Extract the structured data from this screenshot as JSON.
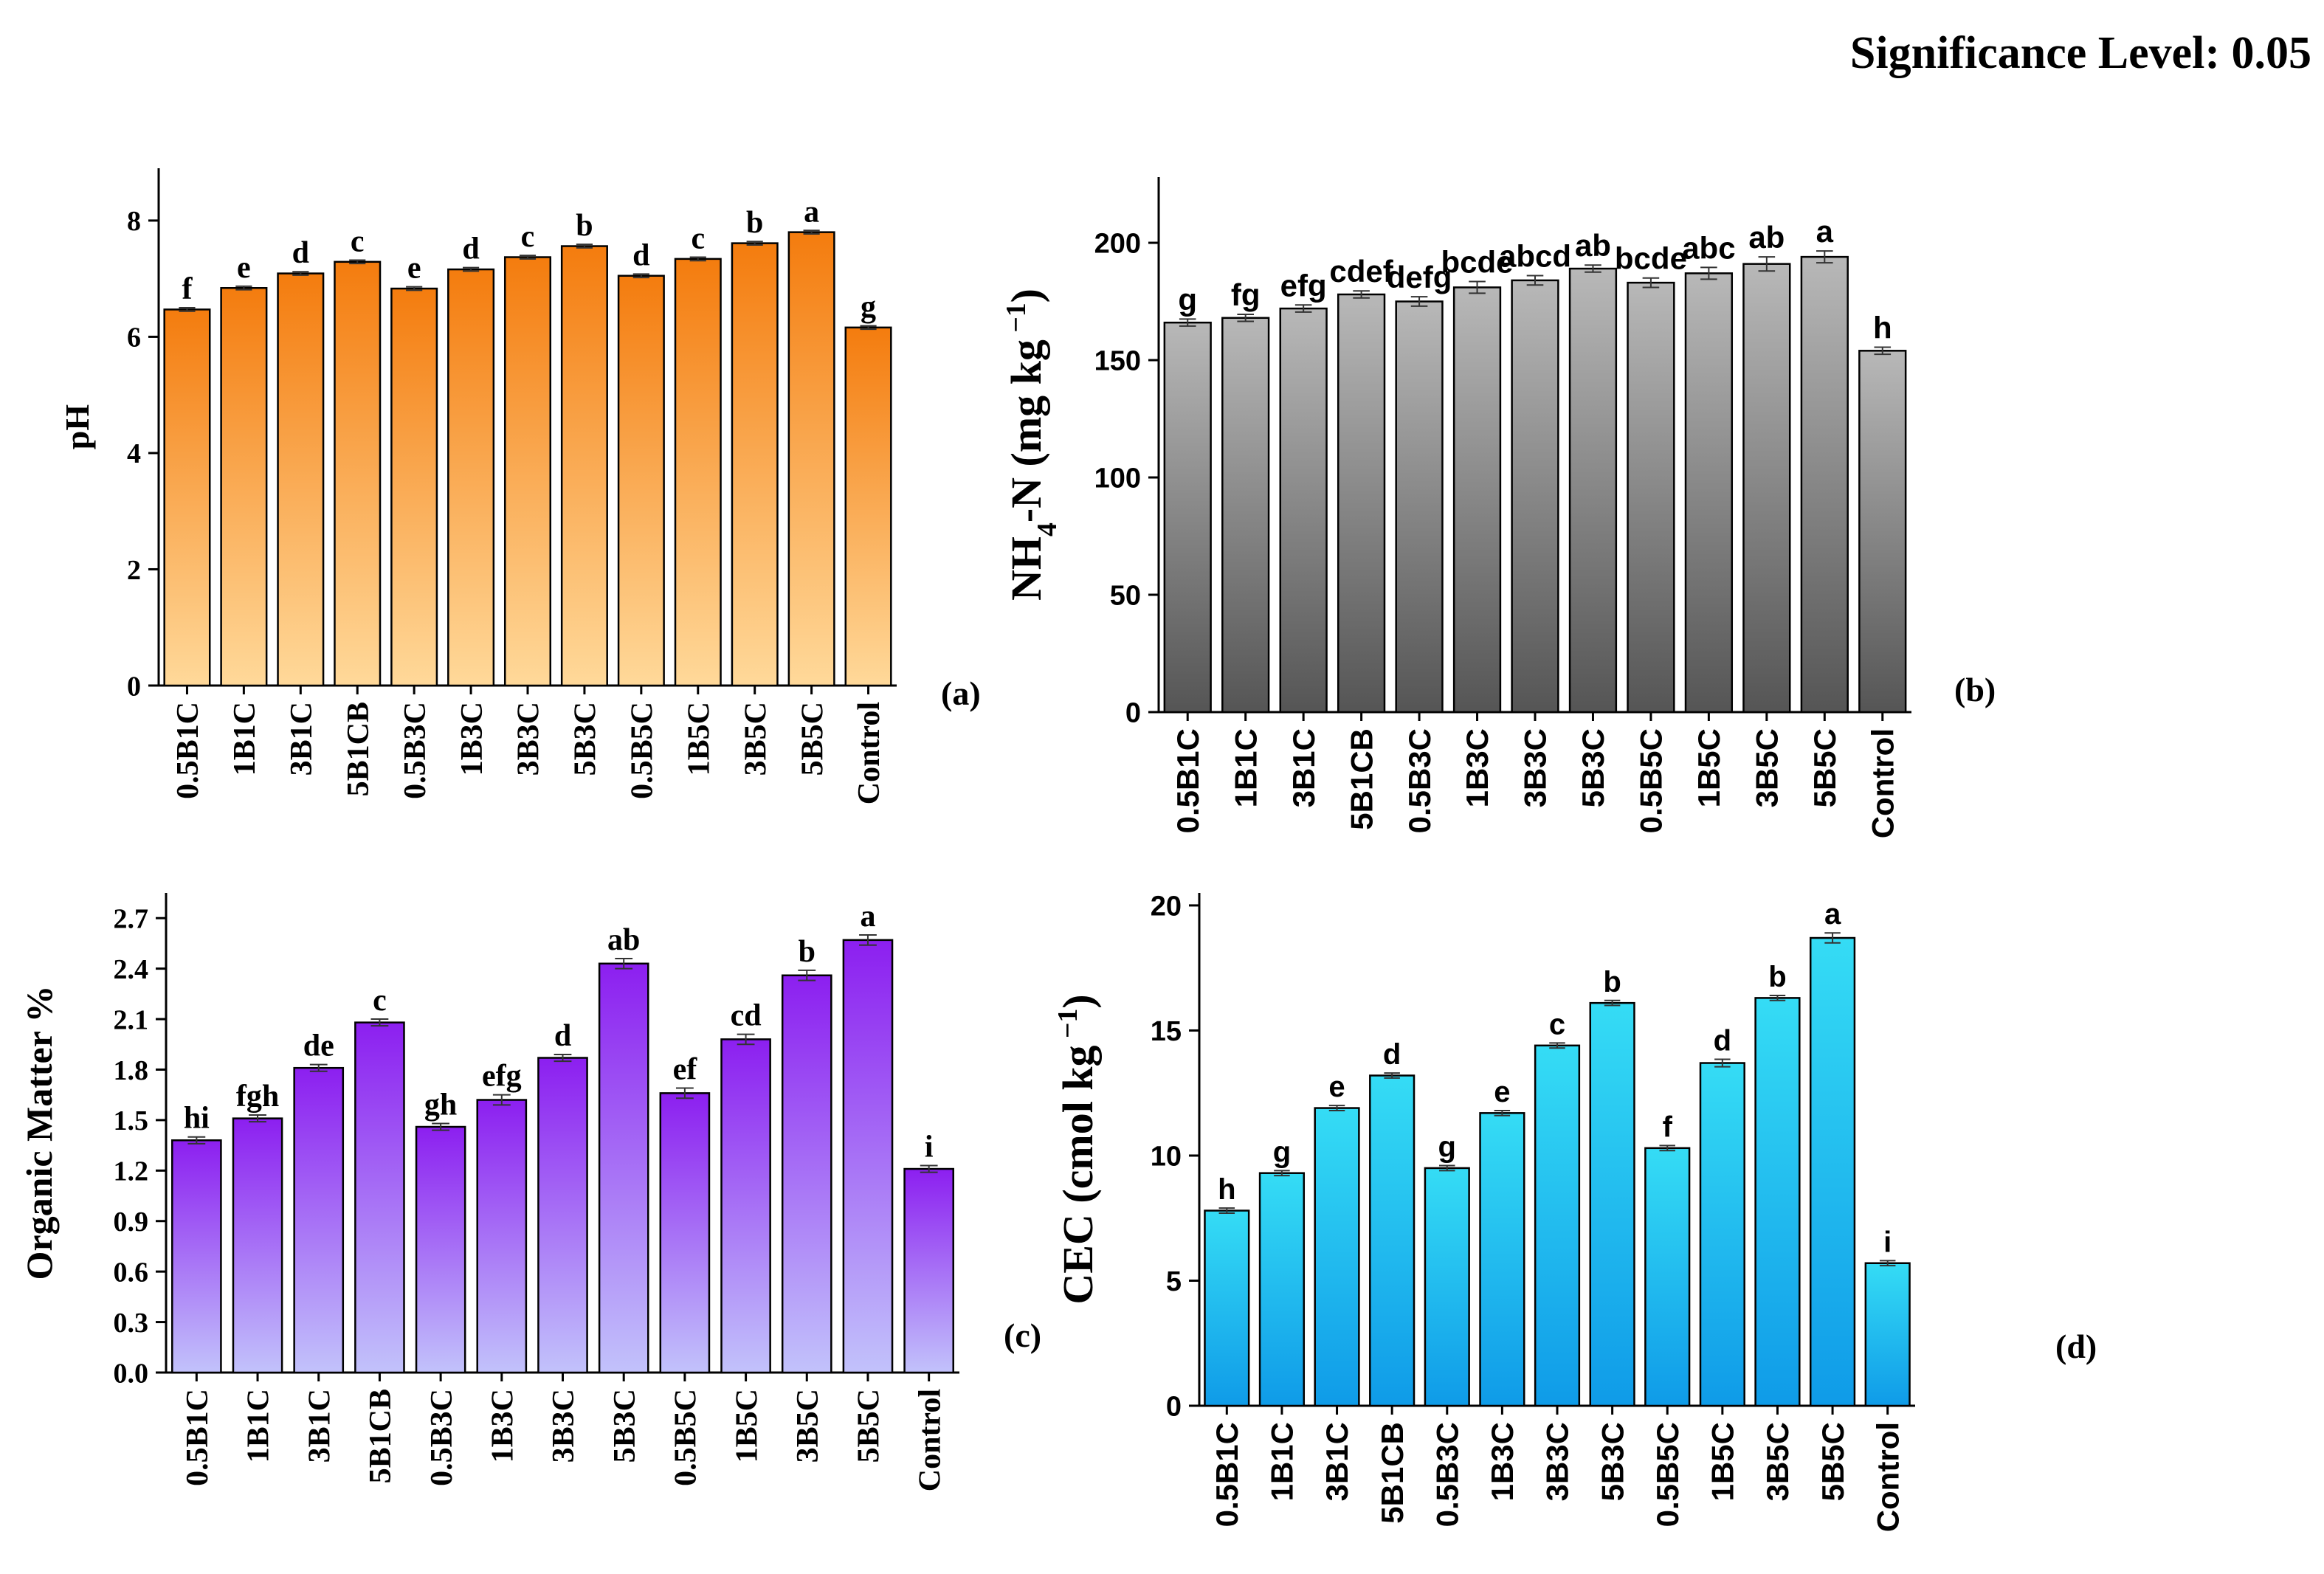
{
  "header": {
    "significance": "Significance Level: 0.05"
  },
  "colors": {
    "ph": {
      "top": "#f47c0e",
      "bottom": "#ffd99a"
    },
    "nh4": {
      "top": "#b8b8b8",
      "bottom": "#555555"
    },
    "om": {
      "top": "#8c1ff0",
      "bottom": "#c2c2fb"
    },
    "cec": {
      "top": "#35dcf5",
      "bottom": "#0f9be8"
    }
  },
  "chart_data": [
    {
      "id": "ph",
      "panel": "(a)",
      "type": "bar",
      "ylabel": "pH",
      "categories": [
        "0.5B1C",
        "1B1C",
        "3B1C",
        "5B1CB",
        "0.5B3C",
        "1B3C",
        "3B3C",
        "5B3C",
        "0.5B5C",
        "1B5C",
        "3B5C",
        "5B5C",
        "Control"
      ],
      "values": [
        6.47,
        6.84,
        7.09,
        7.29,
        6.83,
        7.16,
        7.37,
        7.56,
        7.05,
        7.34,
        7.61,
        7.8,
        6.16
      ],
      "errors": [
        0.03,
        0.03,
        0.03,
        0.03,
        0.03,
        0.03,
        0.03,
        0.03,
        0.03,
        0.03,
        0.03,
        0.03,
        0.03
      ],
      "letters": [
        "f",
        "e",
        "d",
        "c",
        "e",
        "d",
        "c",
        "b",
        "d",
        "c",
        "b",
        "a",
        "g"
      ],
      "ylim": [
        0,
        8.9
      ],
      "yticks": [
        "0",
        "2",
        "4",
        "6",
        "8"
      ],
      "grid": false,
      "font": "serif"
    },
    {
      "id": "nh4",
      "panel": "(b)",
      "type": "bar",
      "ylabel": {
        "pre": "NH",
        "sub": "4",
        "post": "-N (mg kg",
        "sup": "−1",
        "close": ")"
      },
      "categories": [
        "0.5B1C",
        "1B1C",
        "3B1C",
        "5B1CB",
        "0.5B3C",
        "1B3C",
        "3B3C",
        "5B3C",
        "0.5B5C",
        "1B5C",
        "3B5C",
        "5B5C",
        "Control"
      ],
      "values": [
        166,
        168,
        172,
        178,
        175,
        181,
        184,
        189,
        183,
        187,
        191,
        194,
        154
      ],
      "errors": [
        1.5,
        1.5,
        1.5,
        1.5,
        2,
        2.5,
        2,
        1.5,
        2,
        2.5,
        3,
        2.5,
        1.5
      ],
      "letters": [
        "g",
        "fg",
        "efg",
        "cdef",
        "defg",
        "bcde",
        "abcd",
        "ab",
        "bcde",
        "abc",
        "ab",
        "a",
        "h"
      ],
      "ylim": [
        0,
        228
      ],
      "yticks": [
        "0",
        "50",
        "100",
        "150",
        "200"
      ],
      "grid": false,
      "font": "sans"
    },
    {
      "id": "om",
      "panel": "(c)",
      "type": "bar",
      "ylabel": "Organic Matter %",
      "categories": [
        "0.5B1C",
        "1B1C",
        "3B1C",
        "5B1CB",
        "0.5B3C",
        "1B3C",
        "3B3C",
        "5B3C",
        "0.5B5C",
        "1B5C",
        "3B5C",
        "5B5C",
        "Control"
      ],
      "values": [
        1.38,
        1.51,
        1.81,
        2.08,
        1.46,
        1.62,
        1.87,
        2.43,
        1.66,
        1.98,
        2.36,
        2.57,
        1.21
      ],
      "errors": [
        0.02,
        0.02,
        0.02,
        0.02,
        0.02,
        0.03,
        0.02,
        0.03,
        0.03,
        0.03,
        0.03,
        0.03,
        0.02
      ],
      "letters": [
        "hi",
        "fgh",
        "de",
        "c",
        "gh",
        "efg",
        "d",
        "ab",
        "ef",
        "cd",
        "b",
        "a",
        "i"
      ],
      "ylim": [
        0,
        2.85
      ],
      "yticks": [
        "0.0",
        "0.3",
        "0.6",
        "0.9",
        "1.2",
        "1.5",
        "1.8",
        "2.1",
        "2.4",
        "2.7"
      ],
      "grid": false,
      "font": "serif"
    },
    {
      "id": "cec",
      "panel": "(d)",
      "type": "bar",
      "ylabel": {
        "pre": "CEC (cmol kg",
        "sup": "−1",
        "close": ")"
      },
      "categories": [
        "0.5B1C",
        "1B1C",
        "3B1C",
        "5B1CB",
        "0.5B3C",
        "1B3C",
        "3B3C",
        "5B3C",
        "0.5B5C",
        "1B5C",
        "3B5C",
        "5B5C",
        "Control"
      ],
      "values": [
        7.8,
        9.3,
        11.9,
        13.2,
        9.5,
        11.7,
        14.4,
        16.1,
        10.3,
        13.7,
        16.3,
        18.7,
        5.7
      ],
      "errors": [
        0.1,
        0.1,
        0.1,
        0.1,
        0.1,
        0.1,
        0.1,
        0.1,
        0.1,
        0.15,
        0.1,
        0.2,
        0.1
      ],
      "letters": [
        "h",
        "g",
        "e",
        "d",
        "g",
        "e",
        "c",
        "b",
        "f",
        "d",
        "b",
        "a",
        "i"
      ],
      "ylim": [
        0,
        20.5
      ],
      "yticks": [
        "0",
        "5",
        "10",
        "15",
        "20"
      ],
      "grid": false,
      "font": "sans"
    }
  ]
}
